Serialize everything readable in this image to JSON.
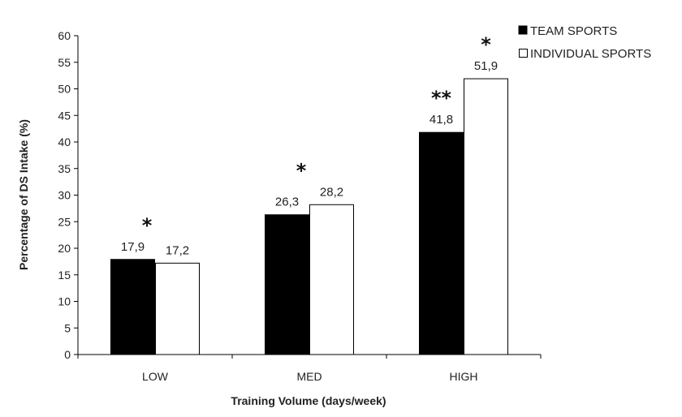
{
  "chart_data": {
    "type": "bar",
    "title": "",
    "xlabel": "Training Volume (days/week)",
    "ylabel": "Percentage of DS Intake (%)",
    "ylim": [
      0,
      60
    ],
    "ytick_step": 5,
    "yticks": [
      "0",
      "5",
      "10",
      "15",
      "20",
      "25",
      "30",
      "35",
      "40",
      "45",
      "50",
      "55",
      "60"
    ],
    "categories": [
      "LOW",
      "MED",
      "HIGH"
    ],
    "grid": false,
    "legend_position": "top-right",
    "series": [
      {
        "name": "TEAM SPORTS",
        "values": [
          17.9,
          26.3,
          41.8
        ],
        "labels": [
          "17,9",
          "26,3",
          "41,8"
        ],
        "fill": "#000000"
      },
      {
        "name": "INDIVIDUAL SPORTS",
        "values": [
          17.2,
          28.2,
          51.9
        ],
        "labels": [
          "17,2",
          "28,2",
          "51,9"
        ],
        "fill": "#ffffff"
      }
    ],
    "annotations": [
      {
        "category": "LOW",
        "text": "*",
        "anchor": "group"
      },
      {
        "category": "MED",
        "text": "*",
        "anchor": "group"
      },
      {
        "category": "HIGH",
        "text": "**",
        "anchor": "TEAM SPORTS"
      },
      {
        "category": "HIGH",
        "text": "*",
        "anchor": "INDIVIDUAL SPORTS"
      }
    ]
  }
}
